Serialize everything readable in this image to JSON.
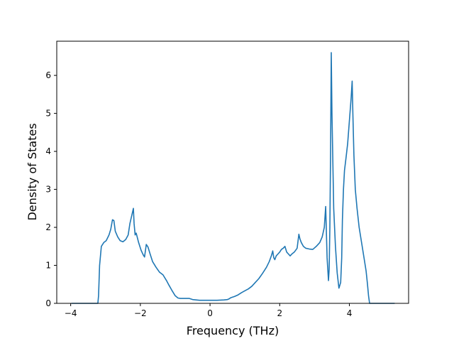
{
  "chart_data": {
    "type": "line",
    "xlabel": "Frequency (THz)",
    "ylabel": "Density of States",
    "xlim": [
      -4.4,
      5.7
    ],
    "ylim": [
      0,
      6.9
    ],
    "xticks": [
      -4,
      -2,
      0,
      2,
      4
    ],
    "yticks": [
      0,
      1,
      2,
      3,
      4,
      5,
      6
    ],
    "grid": false,
    "series": [
      {
        "color": "#1f77b4",
        "x": [
          -3.98,
          -3.22,
          -3.2,
          -3.17,
          -3.12,
          -3.05,
          -2.98,
          -2.9,
          -2.85,
          -2.8,
          -2.76,
          -2.72,
          -2.65,
          -2.58,
          -2.5,
          -2.42,
          -2.35,
          -2.3,
          -2.25,
          -2.2,
          -2.18,
          -2.15,
          -2.12,
          -2.05,
          -1.98,
          -1.92,
          -1.88,
          -1.83,
          -1.78,
          -1.72,
          -1.65,
          -1.55,
          -1.45,
          -1.35,
          -1.25,
          -1.18,
          -1.1,
          -1.0,
          -0.92,
          -0.85,
          -0.75,
          -0.6,
          -0.5,
          -0.4,
          -0.3,
          -0.2,
          -0.1,
          0.0,
          0.2,
          0.4,
          0.5,
          0.55,
          0.6,
          0.7,
          0.8,
          0.9,
          1.0,
          1.1,
          1.2,
          1.3,
          1.4,
          1.5,
          1.55,
          1.62,
          1.7,
          1.76,
          1.8,
          1.83,
          1.86,
          1.9,
          1.95,
          2.0,
          2.05,
          2.1,
          2.15,
          2.2,
          2.25,
          2.3,
          2.35,
          2.42,
          2.5,
          2.55,
          2.58,
          2.62,
          2.68,
          2.75,
          2.85,
          2.95,
          3.05,
          3.15,
          3.22,
          3.28,
          3.32,
          3.36,
          3.4,
          3.42,
          3.44,
          3.46,
          3.48,
          3.5,
          3.53,
          3.55,
          3.6,
          3.65,
          3.7,
          3.75,
          3.78,
          3.8,
          3.83,
          3.86,
          3.9,
          3.95,
          4.0,
          4.05,
          4.08,
          4.1,
          4.13,
          4.17,
          4.22,
          4.28,
          4.35,
          4.42,
          4.48,
          4.52,
          4.55,
          4.58,
          4.62,
          4.7,
          4.8,
          5.0,
          5.2,
          5.3
        ],
        "values": [
          0,
          0,
          0.2,
          1.0,
          1.5,
          1.6,
          1.65,
          1.8,
          1.95,
          2.2,
          2.18,
          1.9,
          1.75,
          1.65,
          1.62,
          1.68,
          1.8,
          2.1,
          2.3,
          2.5,
          2.1,
          1.8,
          1.85,
          1.6,
          1.4,
          1.28,
          1.22,
          1.55,
          1.48,
          1.3,
          1.1,
          0.95,
          0.82,
          0.75,
          0.6,
          0.48,
          0.35,
          0.2,
          0.14,
          0.13,
          0.13,
          0.13,
          0.1,
          0.09,
          0.08,
          0.08,
          0.08,
          0.08,
          0.08,
          0.09,
          0.1,
          0.12,
          0.15,
          0.18,
          0.22,
          0.28,
          0.33,
          0.38,
          0.45,
          0.55,
          0.65,
          0.78,
          0.85,
          0.95,
          1.1,
          1.25,
          1.38,
          1.2,
          1.15,
          1.25,
          1.3,
          1.35,
          1.42,
          1.45,
          1.5,
          1.35,
          1.3,
          1.25,
          1.3,
          1.35,
          1.45,
          1.82,
          1.7,
          1.6,
          1.5,
          1.45,
          1.43,
          1.42,
          1.5,
          1.6,
          1.75,
          2.0,
          2.55,
          1.2,
          0.6,
          0.9,
          2.0,
          4.0,
          6.6,
          5.0,
          3.5,
          2.5,
          1.5,
          0.8,
          0.4,
          0.55,
          1.2,
          2.2,
          3.0,
          3.5,
          3.8,
          4.2,
          4.8,
          5.4,
          5.85,
          5.0,
          3.9,
          3.0,
          2.5,
          2.0,
          1.6,
          1.2,
          0.85,
          0.5,
          0.2,
          0,
          0,
          0,
          0,
          0,
          0,
          0
        ]
      }
    ]
  }
}
